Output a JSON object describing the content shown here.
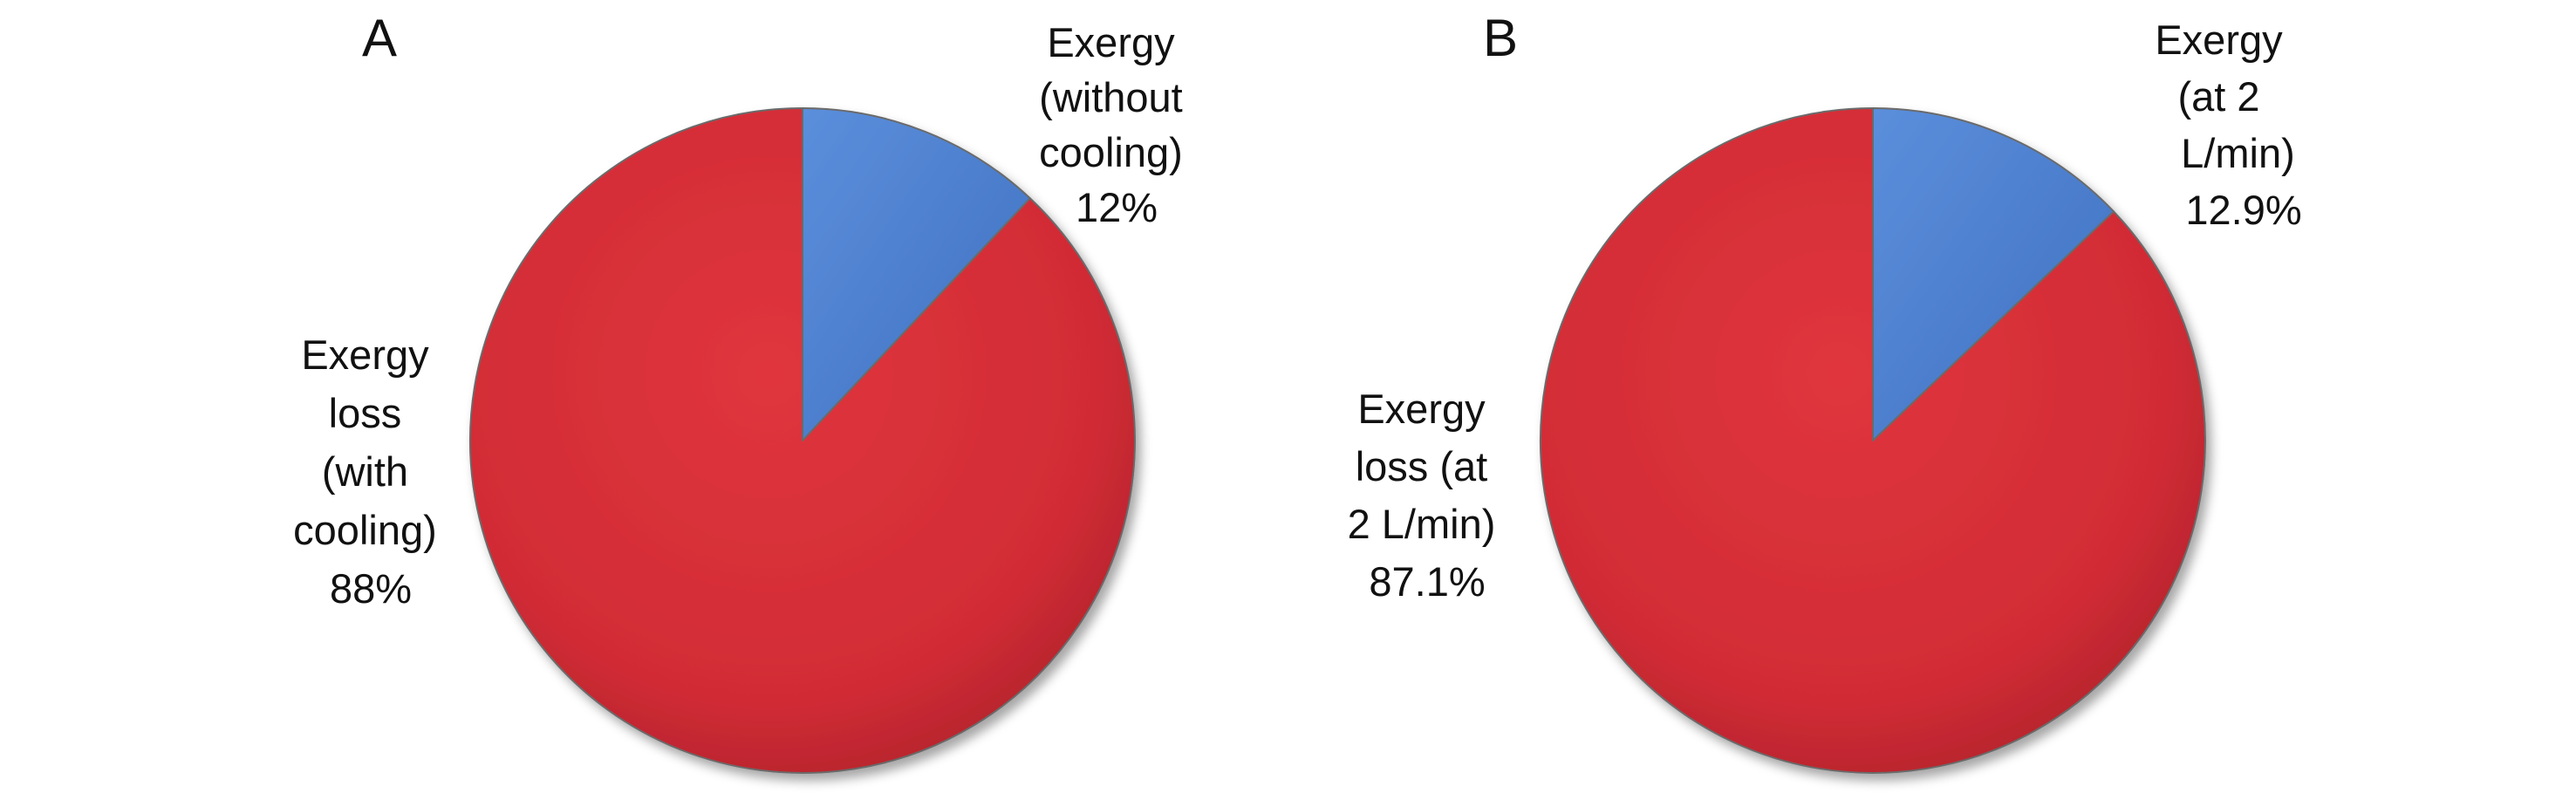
{
  "chart_data": [
    {
      "type": "pie",
      "panel_label": "A",
      "slices": [
        {
          "name_lines": [
            "Exergy",
            "(without",
            "cooling)"
          ],
          "value_label": "12%",
          "value": 12,
          "color": "#4a7fcd"
        },
        {
          "name_lines": [
            "Exergy",
            "loss",
            "(with",
            "cooling)"
          ],
          "value_label": "88%",
          "value": 88,
          "color": "#d8303a"
        }
      ]
    },
    {
      "type": "pie",
      "panel_label": "B",
      "slices": [
        {
          "name_lines": [
            "Exergy",
            "(at 2",
            "L/min)"
          ],
          "value_label": "12.9%",
          "value": 12.9,
          "color": "#4a7fcd"
        },
        {
          "name_lines": [
            "Exergy",
            "loss (at",
            "2  L/min)"
          ],
          "value_label": "87.1%",
          "value": 87.1,
          "color": "#d8303a"
        }
      ]
    }
  ]
}
